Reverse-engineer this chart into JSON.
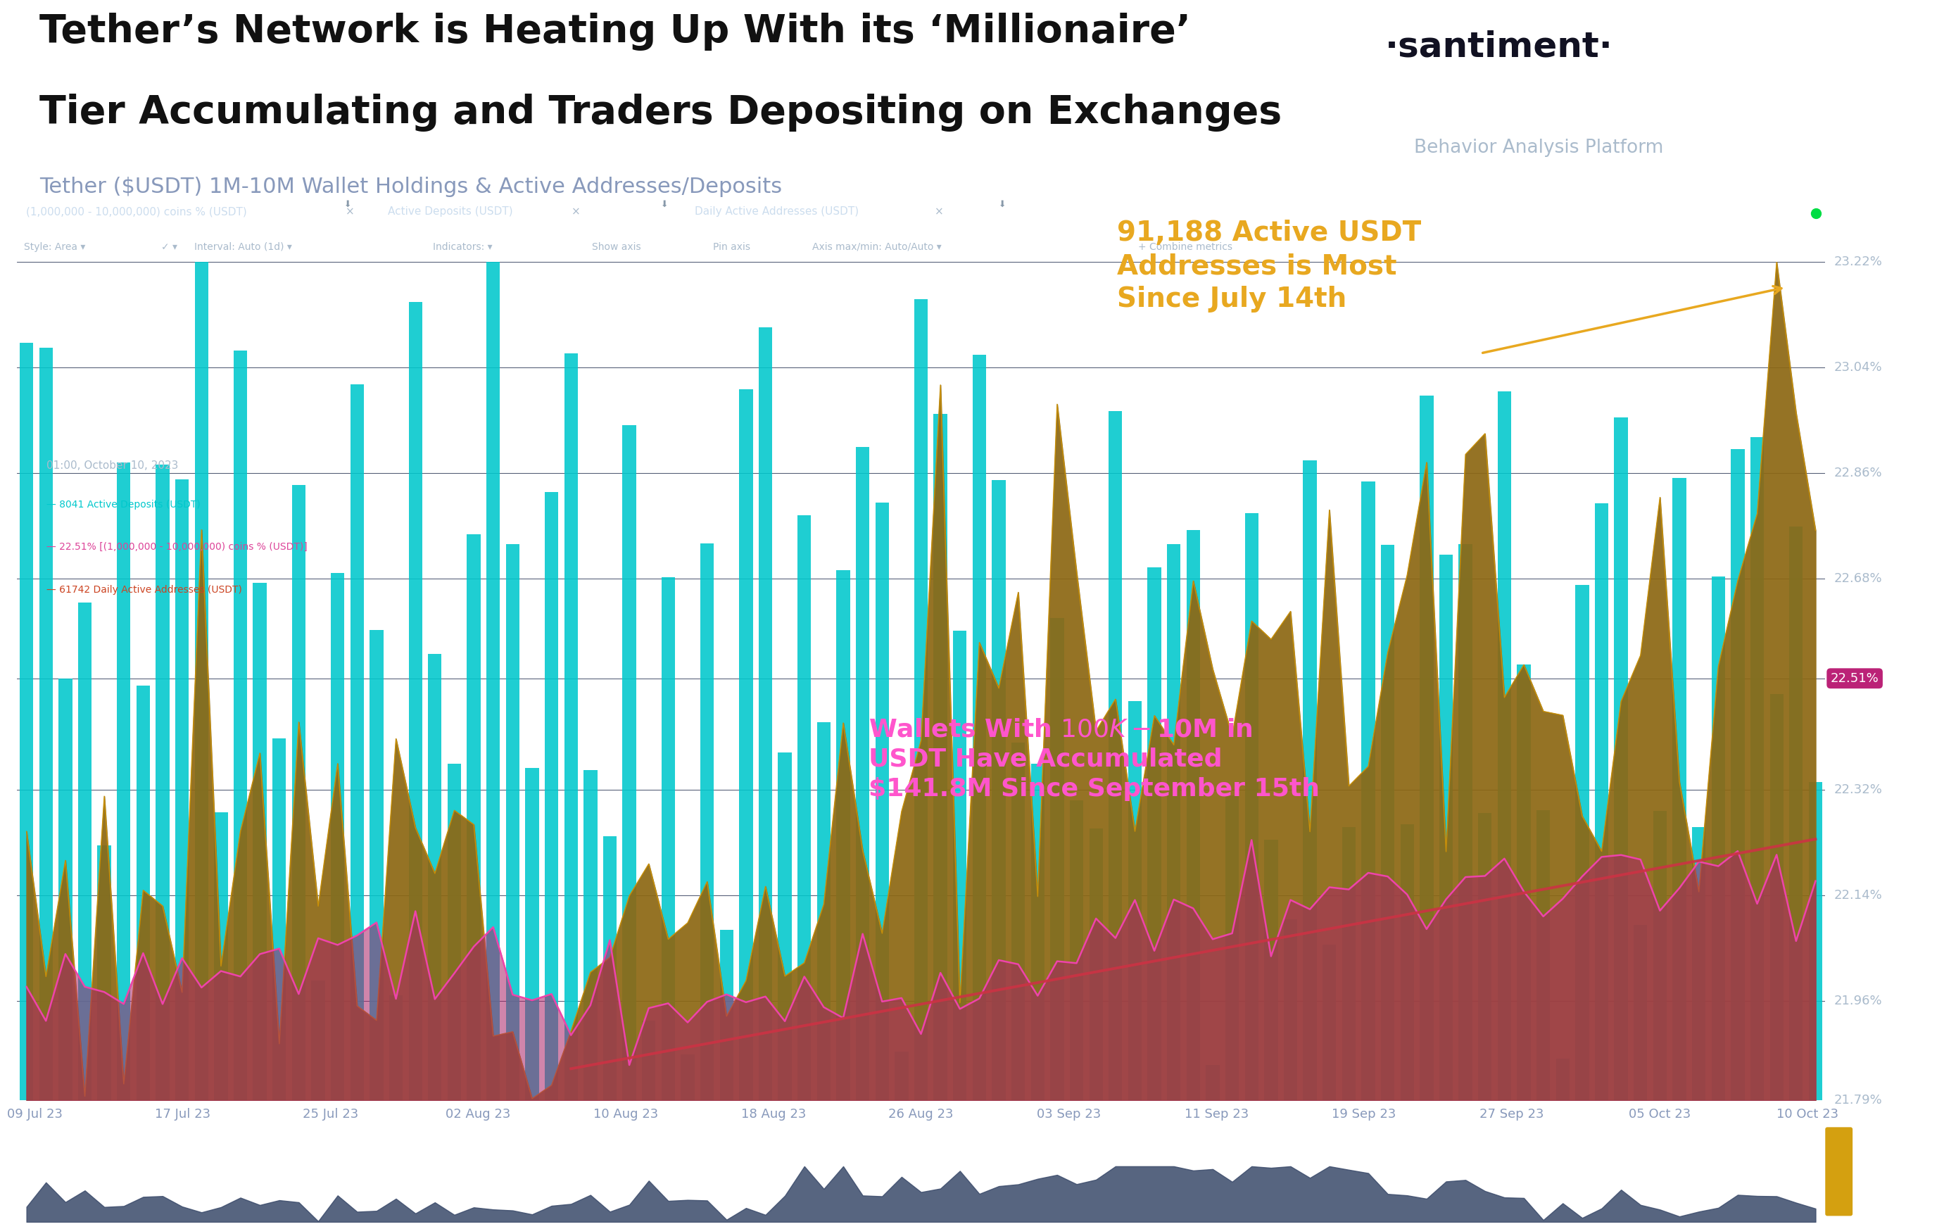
{
  "title_line1": "Tether’s Network is Heating Up With its ‘Millionaire’",
  "title_line2": "Tier Accumulating and Traders Depositing on Exchanges",
  "subtitle": "Tether ($USDT) 1M-10M Wallet Holdings & Active Addresses/Deposits",
  "santiment_text": "·santiment·",
  "behavior_text": "Behavior Analysis Platform",
  "bg_color": "#ffffff",
  "chart_bg": "#141927",
  "title_color": "#111111",
  "subtitle_color": "#8899bb",
  "annotation1_text": "91,188 Active USDT\nAddresses is Most\nSince July 14th",
  "annotation2_text": "Wallets With $100K-$10M in\nUSDT Have Accumulated\n$141.8M Since September 15th",
  "annotation1_color": "#e8a820",
  "annotation2_color": "#ff55cc",
  "x_labels": [
    "09 Jul 23",
    "17 Jul 23",
    "25 Jul 23",
    "02 Aug 23",
    "10 Aug 23",
    "18 Aug 23",
    "26 Aug 23",
    "03 Sep 23",
    "11 Sep 23",
    "19 Sep 23",
    "27 Sep 23",
    "05 Oct 23",
    "10 Oct 23"
  ],
  "y_right_labels": [
    "21.79%",
    "21.96%",
    "22.14%",
    "22.32%",
    "22.51%",
    "22.68%",
    "22.86%",
    "23.04%",
    "23.22%"
  ],
  "y_right_values": [
    21.79,
    21.96,
    22.14,
    22.32,
    22.51,
    22.68,
    22.86,
    23.04,
    23.22
  ],
  "teal_color": "#00c8cc",
  "gold_color": "#a07820",
  "pink_color": "#cc3388",
  "trend_line_color": "#cc3344",
  "toolbar_bg": "#1e2436",
  "toolbar2_bg": "#191e2e"
}
